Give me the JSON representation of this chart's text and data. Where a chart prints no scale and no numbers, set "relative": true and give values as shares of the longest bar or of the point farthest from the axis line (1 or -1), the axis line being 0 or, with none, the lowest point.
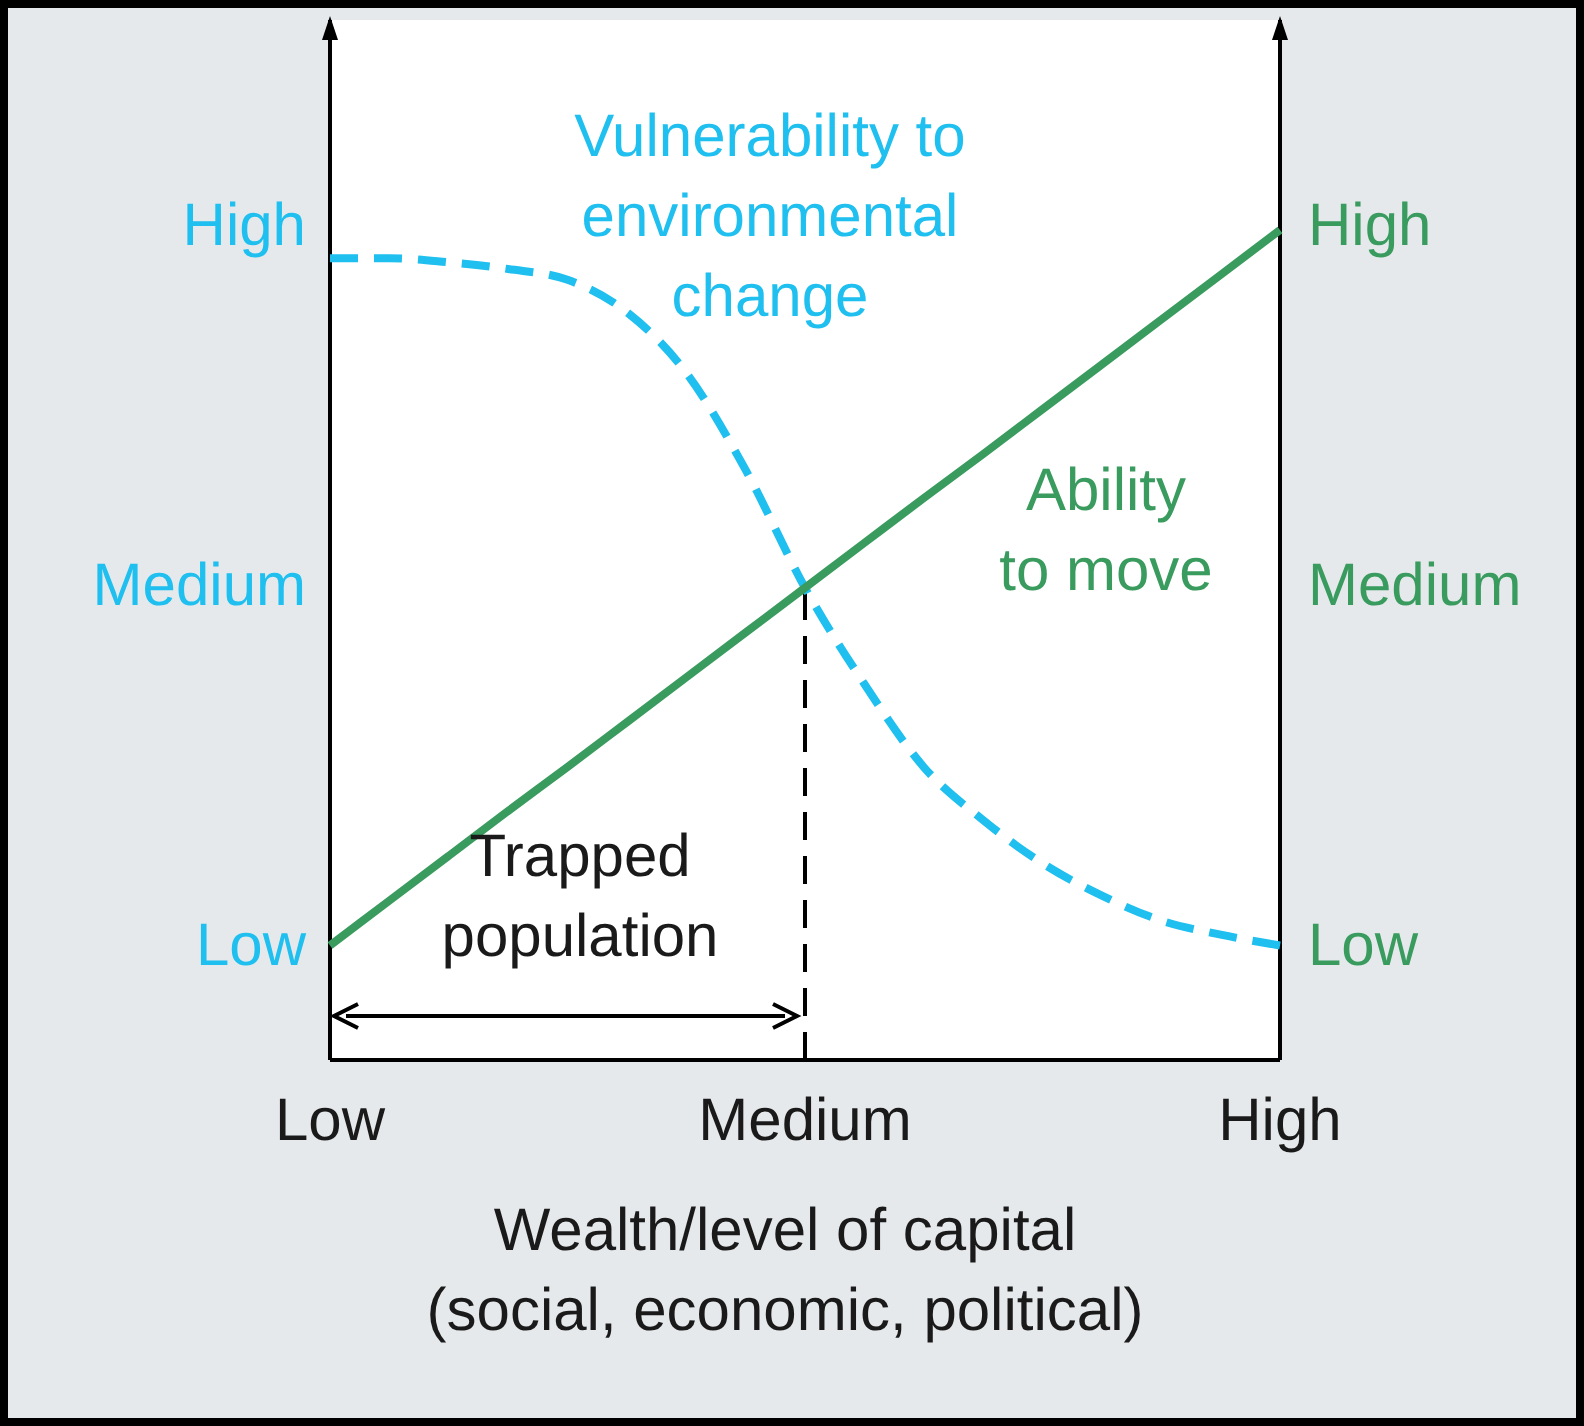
{
  "chart_data": {
    "type": "line",
    "xlabel": "Wealth/level of capital (social, economic, political)",
    "categories": [
      "Low",
      null,
      null,
      null,
      null,
      null,
      null,
      null,
      "Medium",
      null,
      null,
      null,
      null,
      null,
      null,
      null,
      "High"
    ],
    "relative": true,
    "marker": "none",
    "series": [
      {
        "name": "Vulnerability to environmental change",
        "color": "#1fbfef",
        "line_style": "dashed",
        "values": [
          0.966,
          0.966,
          0.961,
          0.953,
          0.94,
          0.901,
          0.828,
          0.711,
          0.569,
          0.453,
          0.353,
          0.289,
          0.237,
          0.198,
          0.168,
          0.151,
          0.138
        ]
      },
      {
        "name": "Ability to move",
        "color": "#3a9b5f",
        "line_style": "solid",
        "axis": "y2",
        "values": [
          0.138,
          0.192,
          0.246,
          0.3,
          0.353,
          0.407,
          0.461,
          0.515,
          0.569,
          0.623,
          0.677,
          0.73,
          0.784,
          0.838,
          0.892,
          0.946,
          1.0
        ]
      }
    ],
    "ref_lines": [
      {
        "axis": "x",
        "value": "Medium",
        "color": "#000000",
        "line_style": "dashed"
      }
    ],
    "annotations": [
      "Trapped population",
      "High",
      "Medium",
      "Low",
      "High",
      "Medium",
      "Low"
    ]
  }
}
